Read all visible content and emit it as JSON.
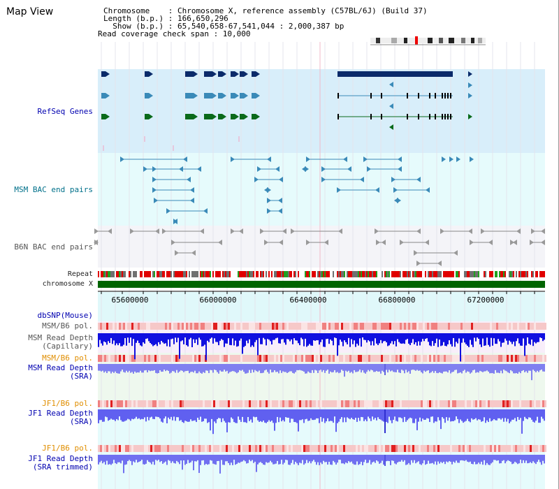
{
  "app": {
    "title": "Map View"
  },
  "header": {
    "line1": "Chromosome    : Chromosome X, reference assembly (C57BL/6J) (Build 37)",
    "line2": "Length (b.p.) : 166,650,296",
    "line3": "  Show (b.p.) : 65,540,658-67,541,044 : 2,000,387 bp",
    "line4": "Read coverage check span : 10,000"
  },
  "tracks": {
    "refseq": "RefSeq Genes",
    "msm_bac": "MSM BAC end pairs",
    "b6n_bac": "B6N BAC end pairs",
    "repeat": "Repeat",
    "chromosome": "chromosome X",
    "dbsnp": "dbSNP(Mouse)",
    "msm_pol1": "MSM/B6 pol.",
    "msm_depth_cap_1": "MSM Read Depth",
    "msm_depth_cap_2": "(Capillary)",
    "msm_pol2": "MSM/B6 pol.",
    "msm_depth_sra_1": "MSM Read Depth",
    "msm_depth_sra_2": "(SRA)",
    "jf1_pol1": "JF1/B6 pol.",
    "jf1_depth_sra_1": "JF1 Read Depth",
    "jf1_depth_sra_2": "(SRA)",
    "jf1_pol2": "JF1/B6 pol.",
    "jf1_depth_trim_1": "JF1 Read Depth",
    "jf1_depth_trim_2": "(SRA trimmed)"
  },
  "axis": {
    "ticks": [
      "65600000",
      "66000000",
      "66400000",
      "66800000",
      "67200000"
    ]
  },
  "colors": {
    "refseq_bg": "#d8eefa",
    "bac_bg": "#e6fbfc",
    "b6n_bg": "#f4f4f8",
    "gene_dark": "#0a2a6a",
    "gene_mid": "#3a8ab8",
    "gene_green": "#0a6a1a",
    "chromosome_bar": "#006400",
    "repeat_red": "#e00000",
    "depth_blue": "#3a3ae8",
    "pol_pink": "#f0a0a0"
  }
}
